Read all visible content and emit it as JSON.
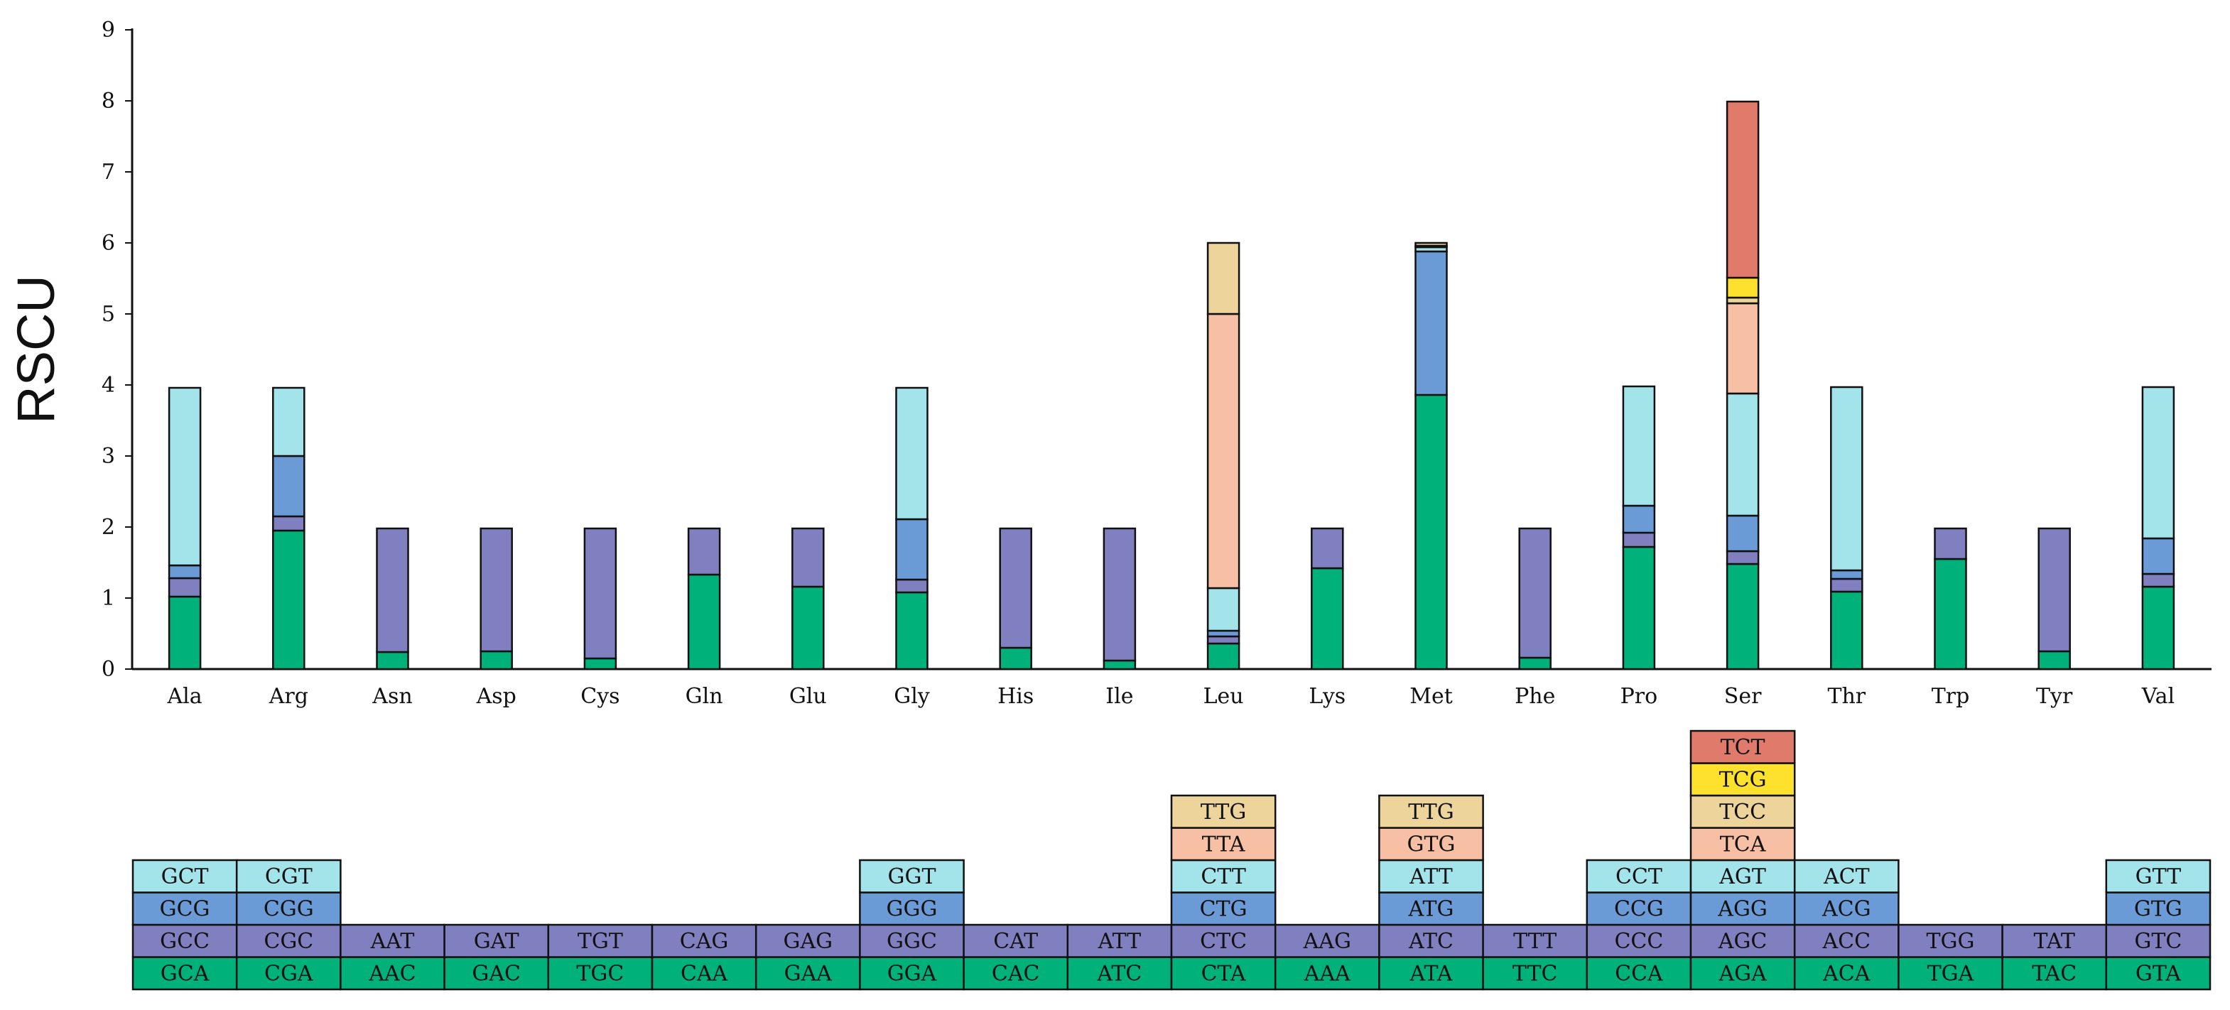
{
  "chart_data": {
    "type": "bar",
    "stacked": true,
    "title": "",
    "xlabel": "",
    "ylabel": "RSCU",
    "ylim": [
      0,
      9
    ],
    "yticks": [
      "0",
      "1",
      "2",
      "3",
      "4",
      "5",
      "6",
      "7",
      "8",
      "9"
    ],
    "grid": false,
    "categories": [
      "Ala",
      "Arg",
      "Asn",
      "Asp",
      "Cys",
      "Gln",
      "Glu",
      "Gly",
      "His",
      "Ile",
      "Leu",
      "Lys",
      "Met",
      "Phe",
      "Pro",
      "Ser",
      "Thr",
      "Trp",
      "Tyr",
      "Val"
    ],
    "colors": [
      "#00b27a",
      "#8080c0",
      "#6b9bd6",
      "#a3e3ea",
      "#f7bfa4",
      "#ecd49a",
      "#fde12d",
      "#e07a6a"
    ],
    "stacks": [
      {
        "category": "Ala",
        "segments": [
          {
            "codon": "GCA",
            "value": 1.02
          },
          {
            "codon": "GCC",
            "value": 0.26
          },
          {
            "codon": "GCG",
            "value": 0.18
          },
          {
            "codon": "GCT",
            "value": 2.5
          }
        ]
      },
      {
        "category": "Arg",
        "segments": [
          {
            "codon": "CGA",
            "value": 1.95
          },
          {
            "codon": "CGC",
            "value": 0.2
          },
          {
            "codon": "CGG",
            "value": 0.85
          },
          {
            "codon": "CGT",
            "value": 0.96
          }
        ]
      },
      {
        "category": "Asn",
        "segments": [
          {
            "codon": "AAC",
            "value": 0.24
          },
          {
            "codon": "AAT",
            "value": 1.74
          }
        ]
      },
      {
        "category": "Asp",
        "segments": [
          {
            "codon": "GAC",
            "value": 0.25
          },
          {
            "codon": "GAT",
            "value": 1.73
          }
        ]
      },
      {
        "category": "Cys",
        "segments": [
          {
            "codon": "TGC",
            "value": 0.15
          },
          {
            "codon": "TGT",
            "value": 1.83
          }
        ]
      },
      {
        "category": "Gln",
        "segments": [
          {
            "codon": "CAA",
            "value": 1.33
          },
          {
            "codon": "CAG",
            "value": 0.65
          }
        ]
      },
      {
        "category": "Glu",
        "segments": [
          {
            "codon": "GAA",
            "value": 1.16
          },
          {
            "codon": "GAG",
            "value": 0.82
          }
        ]
      },
      {
        "category": "Gly",
        "segments": [
          {
            "codon": "GGA",
            "value": 1.08
          },
          {
            "codon": "GGC",
            "value": 0.18
          },
          {
            "codon": "GGG",
            "value": 0.85
          },
          {
            "codon": "GGT",
            "value": 1.85
          }
        ]
      },
      {
        "category": "His",
        "segments": [
          {
            "codon": "CAC",
            "value": 0.3
          },
          {
            "codon": "CAT",
            "value": 1.68
          }
        ]
      },
      {
        "category": "Ile",
        "segments": [
          {
            "codon": "ATC",
            "value": 0.12
          },
          {
            "codon": "ATT",
            "value": 1.86
          }
        ]
      },
      {
        "category": "Leu",
        "segments": [
          {
            "codon": "CTA",
            "value": 0.36
          },
          {
            "codon": "CTC",
            "value": 0.1
          },
          {
            "codon": "CTG",
            "value": 0.08
          },
          {
            "codon": "CTT",
            "value": 0.6
          },
          {
            "codon": "TTA",
            "value": 3.86
          },
          {
            "codon": "TTG",
            "value": 1.0
          }
        ]
      },
      {
        "category": "Lys",
        "segments": [
          {
            "codon": "AAA",
            "value": 1.42
          },
          {
            "codon": "AAG",
            "value": 0.56
          }
        ]
      },
      {
        "category": "Met",
        "segments": [
          {
            "codon": "ATA",
            "value": 3.86
          },
          {
            "codon": "ATC",
            "value": 0.0
          },
          {
            "codon": "ATG",
            "value": 2.02
          },
          {
            "codon": "ATT",
            "value": 0.06
          },
          {
            "codon": "GTG",
            "value": 0.02
          },
          {
            "codon": "TTG",
            "value": 0.04
          }
        ]
      },
      {
        "category": "Phe",
        "segments": [
          {
            "codon": "TTC",
            "value": 0.16
          },
          {
            "codon": "TTT",
            "value": 1.82
          }
        ]
      },
      {
        "category": "Pro",
        "segments": [
          {
            "codon": "CCA",
            "value": 1.72
          },
          {
            "codon": "CCC",
            "value": 0.2
          },
          {
            "codon": "CCG",
            "value": 0.38
          },
          {
            "codon": "CCT",
            "value": 1.68
          }
        ]
      },
      {
        "category": "Ser",
        "segments": [
          {
            "codon": "AGA",
            "value": 1.48
          },
          {
            "codon": "AGC",
            "value": 0.18
          },
          {
            "codon": "AGG",
            "value": 0.5
          },
          {
            "codon": "AGT",
            "value": 1.72
          },
          {
            "codon": "TCA",
            "value": 1.27
          },
          {
            "codon": "TCC",
            "value": 0.08
          },
          {
            "codon": "TCG",
            "value": 0.28
          },
          {
            "codon": "TCT",
            "value": 2.48
          }
        ]
      },
      {
        "category": "Thr",
        "segments": [
          {
            "codon": "ACA",
            "value": 1.09
          },
          {
            "codon": "ACC",
            "value": 0.18
          },
          {
            "codon": "ACG",
            "value": 0.12
          },
          {
            "codon": "ACT",
            "value": 2.58
          }
        ]
      },
      {
        "category": "Trp",
        "segments": [
          {
            "codon": "TGA",
            "value": 1.55
          },
          {
            "codon": "TGG",
            "value": 0.43
          }
        ]
      },
      {
        "category": "Tyr",
        "segments": [
          {
            "codon": "TAC",
            "value": 0.25
          },
          {
            "codon": "TAT",
            "value": 1.73
          }
        ]
      },
      {
        "category": "Val",
        "segments": [
          {
            "codon": "GTA",
            "value": 1.16
          },
          {
            "codon": "GTC",
            "value": 0.18
          },
          {
            "codon": "GTG",
            "value": 0.5
          },
          {
            "codon": "GTT",
            "value": 2.13
          }
        ]
      }
    ]
  }
}
